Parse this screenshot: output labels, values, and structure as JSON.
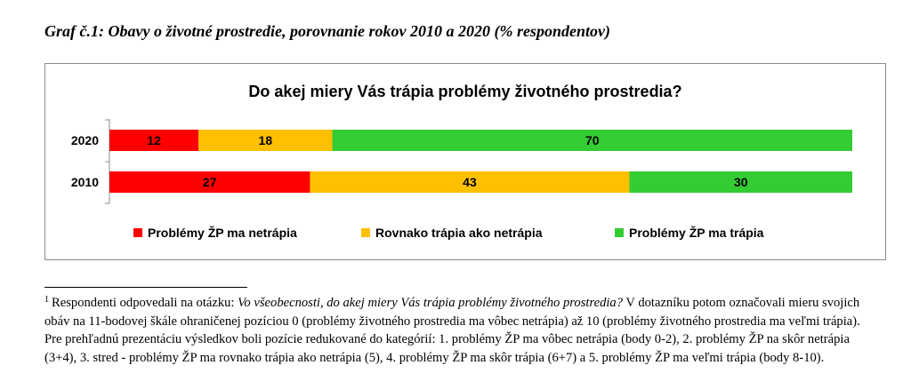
{
  "caption": "Graf č.1: Obavy o životné prostredie, porovnanie rokov  2010 a 2020 (% respondentov)",
  "chart_data": {
    "type": "bar",
    "orientation": "horizontal",
    "stacked": true,
    "title": "Do akej miery Vás trápia problémy životného prostredia?",
    "categories": [
      "2020",
      "2010"
    ],
    "series": [
      {
        "name": "Problémy ŽP ma netrápia",
        "color": "#ff0000",
        "values": [
          12,
          27
        ]
      },
      {
        "name": "Rovnako trápia ako netrápia",
        "color": "#ffc000",
        "values": [
          18,
          43
        ]
      },
      {
        "name": "Problémy ŽP ma trápia",
        "color": "#33cc33",
        "values": [
          70,
          30
        ]
      }
    ],
    "xlim": [
      0,
      100
    ],
    "grid": false,
    "legend_position": "bottom",
    "data_labels": true
  },
  "footnote": {
    "marker": "1",
    "intro": "Respondenti odpovedali na otázku: ",
    "question": "Vo všeobecnosti, do akej miery Vás trápia problémy životného prostredia?",
    "text": " V dotazníku potom označovali mieru svojich obáv na 11-bodovej škále ohraničenej pozíciou 0 (problémy životného prostredia ma vôbec netrápia) až 10 (problémy životného prostredia ma veľmi trápia). Pre prehľadnú  prezentáciu výsledkov boli pozície redukované do kategórií: 1. problémy ŽP ma vôbec netrápia (body 0-2), 2. problémy ŽP na skôr netrápia (3+4), 3. stred - problémy ŽP ma rovnako trápia ako netrápia (5), 4. problémy ŽP ma skôr trápia (6+7) a 5. problémy ŽP ma veľmi trápia (body 8-10)."
  }
}
